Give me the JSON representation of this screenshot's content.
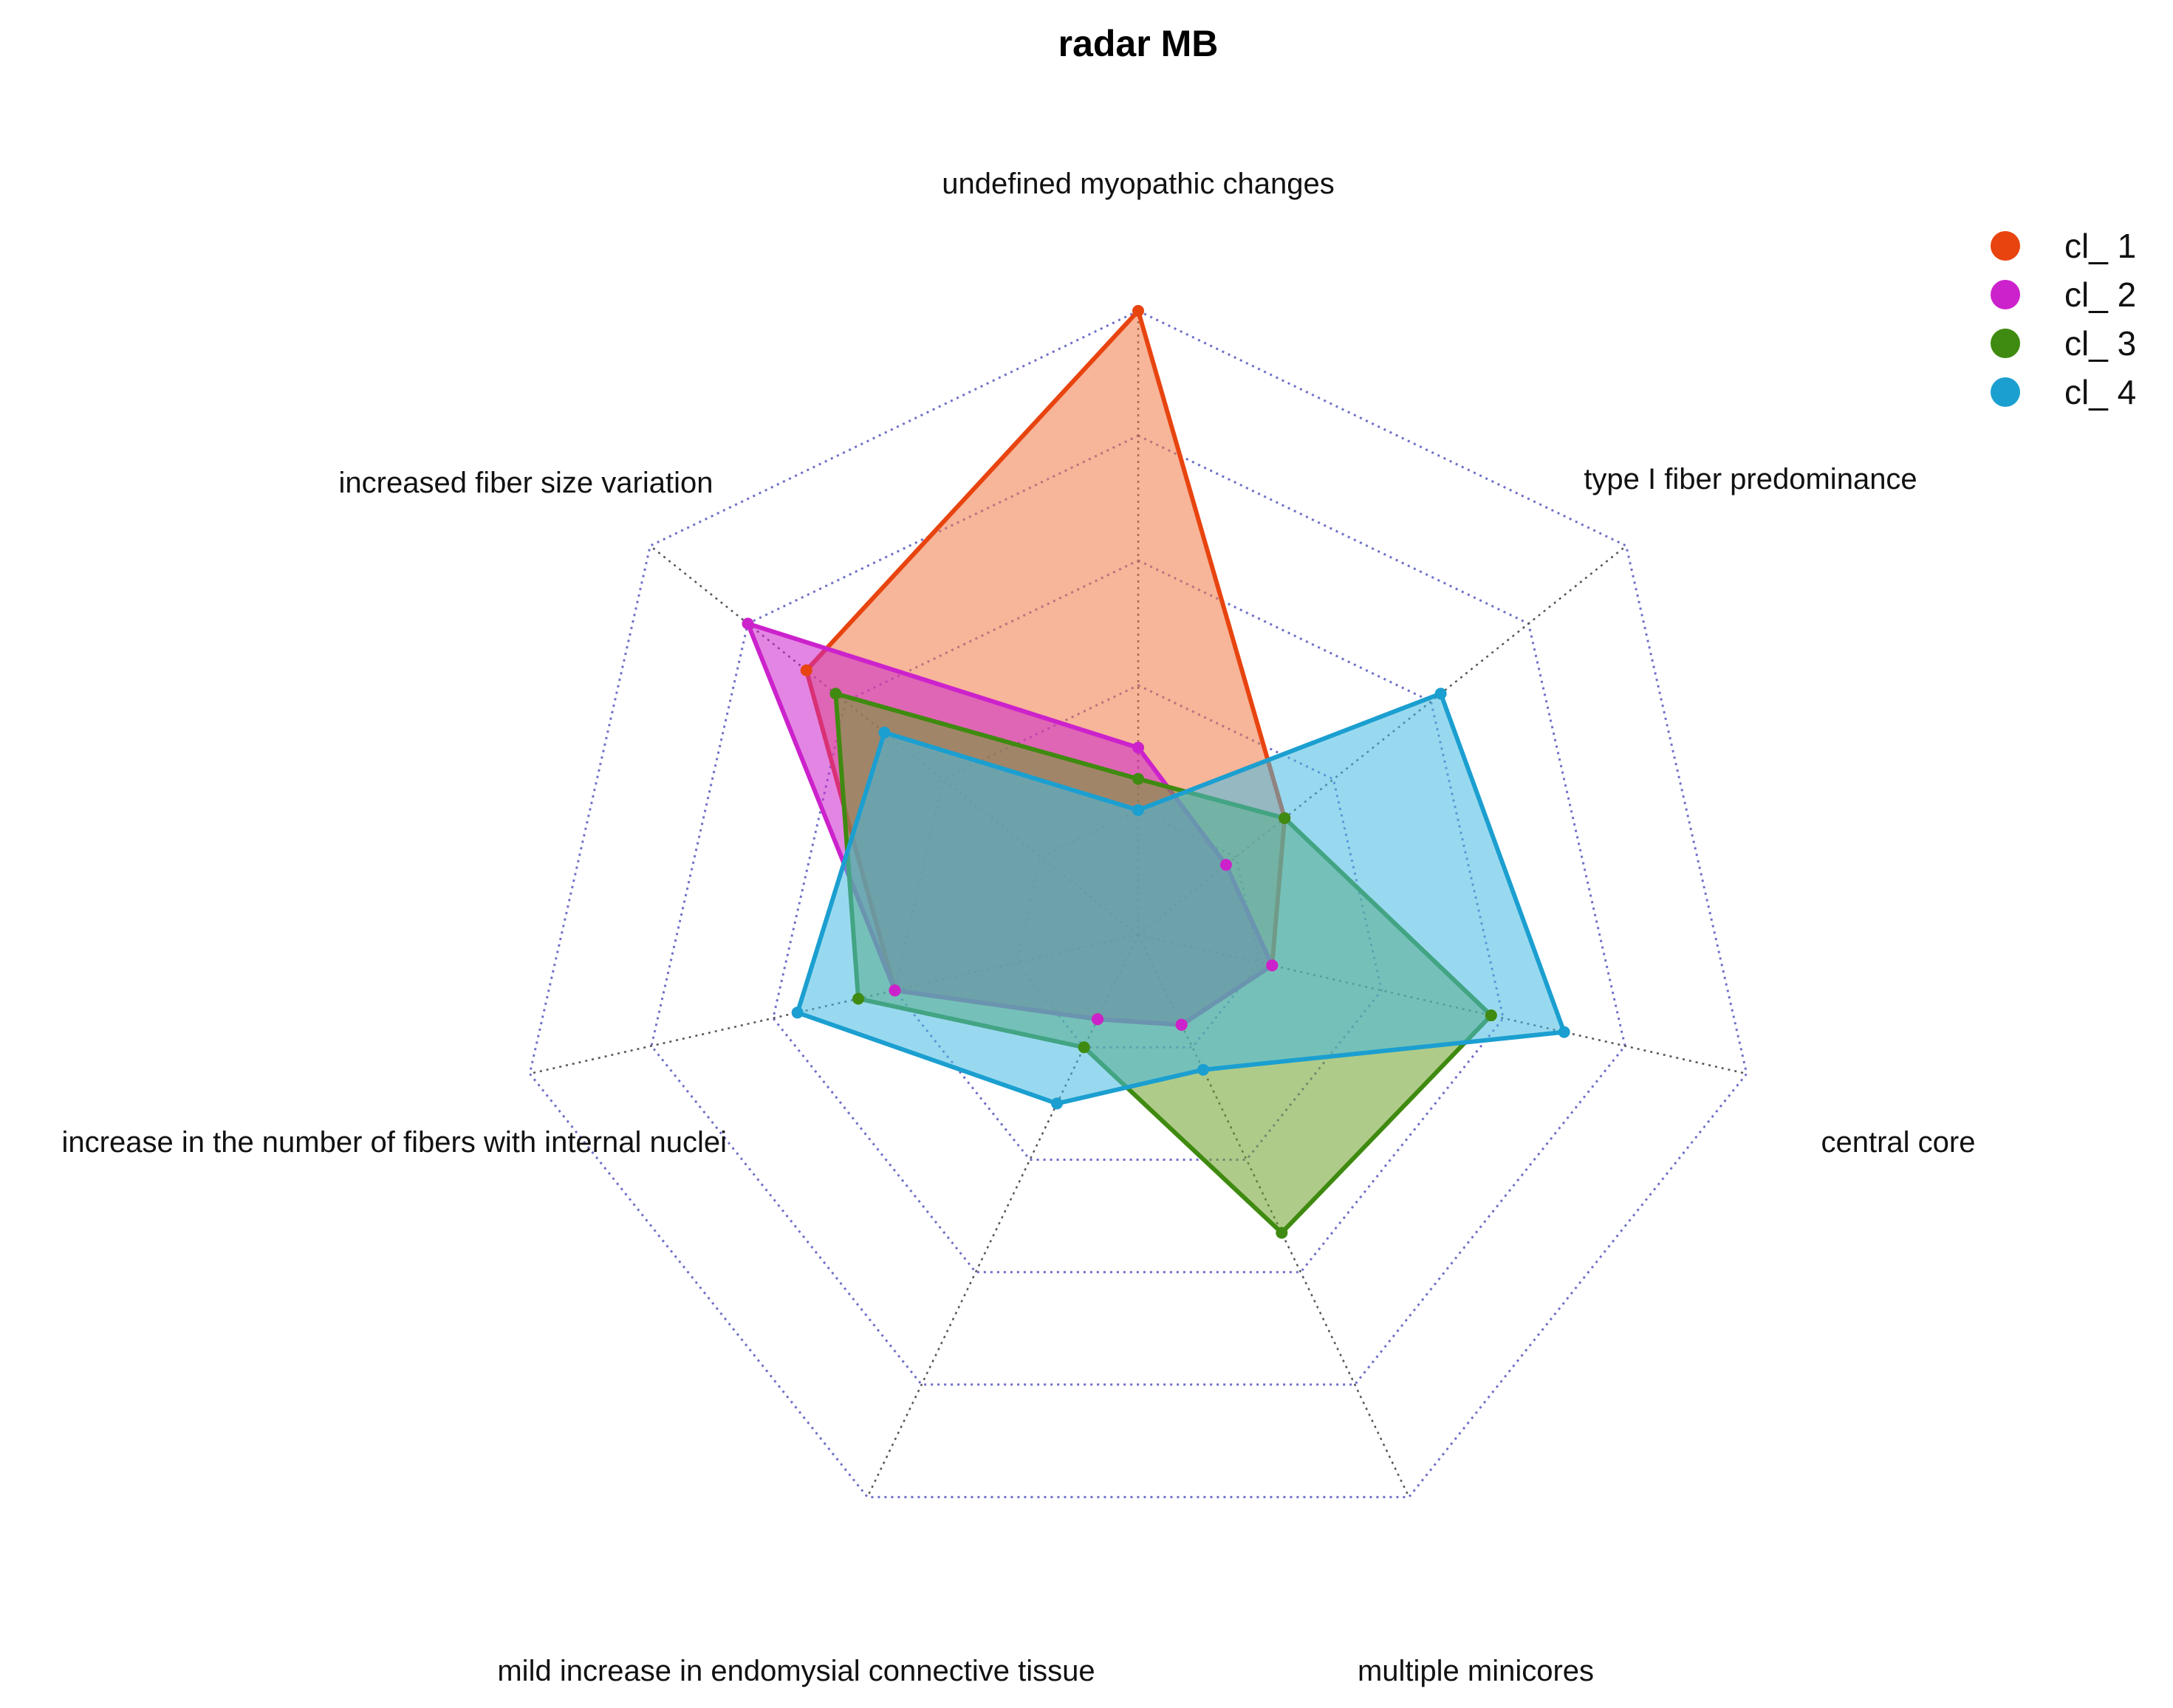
{
  "chart_data": {
    "type": "radar",
    "title": "radar MB",
    "axes": [
      "undefined myopathic changes",
      "type I fiber predominance",
      "central core",
      "multiple minicores",
      "mild increase in endomysial connective tissue",
      "increase in the number of fibers with internal nuclei",
      "increased fiber size variation"
    ],
    "range": [
      0,
      1
    ],
    "grid_levels": 5,
    "grid": true,
    "grid_style": "dotted",
    "legend_position": "top-right",
    "series": [
      {
        "name": "cl_ 1",
        "color": "#E8440F",
        "fill": "rgba(240,120,70,0.55)",
        "values": [
          1.0,
          0.3,
          0.22,
          0.16,
          0.15,
          0.4,
          0.68
        ]
      },
      {
        "name": "cl_ 2",
        "color": "#CC22CC",
        "fill": "rgba(204,34,204,0.55)",
        "values": [
          0.3,
          0.18,
          0.22,
          0.16,
          0.15,
          0.4,
          0.8
        ]
      },
      {
        "name": "cl_ 3",
        "color": "#3F8A10",
        "fill": "rgba(110,160,40,0.55)",
        "values": [
          0.25,
          0.3,
          0.58,
          0.53,
          0.2,
          0.46,
          0.62
        ]
      },
      {
        "name": "cl_ 4",
        "color": "#1B9FD0",
        "fill": "rgba(70,185,225,0.55)",
        "values": [
          0.2,
          0.62,
          0.7,
          0.24,
          0.3,
          0.56,
          0.52
        ]
      }
    ]
  }
}
